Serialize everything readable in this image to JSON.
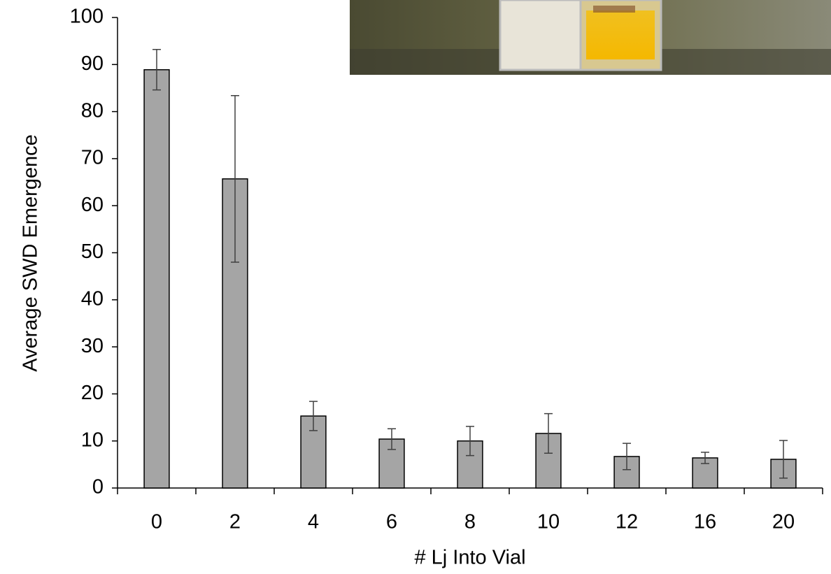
{
  "chart_data": {
    "type": "bar",
    "x_label": "# Lj Into Vial",
    "y_label": "Average  SWD Emergence",
    "categories": [
      "0",
      "2",
      "4",
      "6",
      "8",
      "10",
      "12",
      "16",
      "20"
    ],
    "values": [
      88.9,
      65.7,
      15.3,
      10.4,
      10.0,
      11.6,
      6.7,
      6.4,
      6.1
    ],
    "error": [
      4.3,
      17.7,
      3.1,
      2.2,
      3.1,
      4.2,
      2.8,
      1.2,
      4.0
    ],
    "color": "#a5a5a5",
    "ylim": [
      0,
      100
    ],
    "yticks": [
      0,
      10,
      20,
      30,
      40,
      50,
      60,
      70,
      80,
      90,
      100
    ],
    "grid": false
  }
}
